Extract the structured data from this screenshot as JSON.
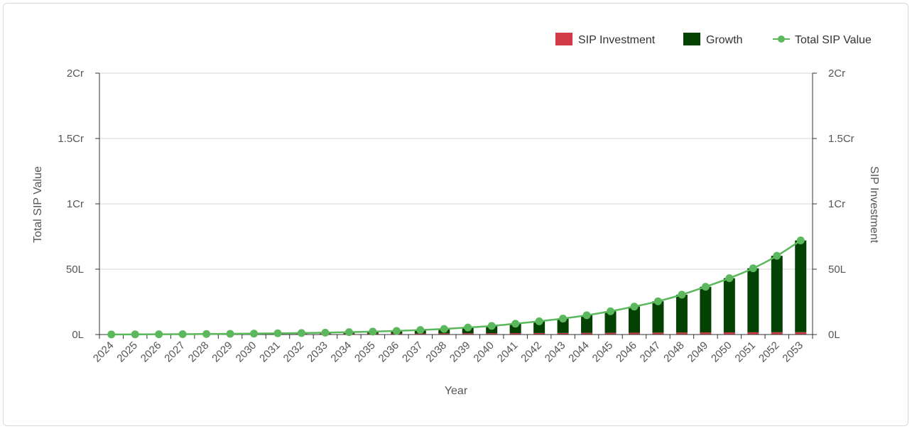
{
  "chart_data": {
    "type": "bar",
    "stacked": true,
    "categories": [
      "2024",
      "2025",
      "2026",
      "2027",
      "2028",
      "2029",
      "2030",
      "2031",
      "2032",
      "2033",
      "2034",
      "2035",
      "2036",
      "2037",
      "2038",
      "2039",
      "2040",
      "2041",
      "2042",
      "2043",
      "2044",
      "2045",
      "2046",
      "2047",
      "2048",
      "2049",
      "2050",
      "2051",
      "2052",
      "2053"
    ],
    "series": [
      {
        "name": "SIP Investment",
        "kind": "bar",
        "color": "#d13b47",
        "values": [
          0.06,
          0.12,
          0.18,
          0.24,
          0.3,
          0.36,
          0.42,
          0.48,
          0.54,
          0.6,
          0.66,
          0.72,
          0.78,
          0.84,
          0.9,
          0.96,
          1.02,
          1.08,
          1.14,
          1.2,
          1.26,
          1.32,
          1.38,
          1.44,
          1.5,
          1.56,
          1.62,
          1.68,
          1.74,
          1.8
        ]
      },
      {
        "name": "Growth",
        "kind": "bar",
        "color": "#034203",
        "values": [
          0.0,
          0.0,
          0.02,
          0.05,
          0.1,
          0.18,
          0.3,
          0.45,
          0.62,
          0.85,
          1.15,
          1.5,
          2.0,
          2.6,
          3.4,
          4.4,
          5.6,
          7.2,
          9.0,
          11.0,
          13.5,
          16.5,
          20.0,
          24.0,
          29.0,
          35.0,
          41.5,
          49.0,
          58.5,
          70.2
        ]
      },
      {
        "name": "Total SIP Value",
        "kind": "line",
        "color": "#5cb85c",
        "values": [
          0.06,
          0.12,
          0.2,
          0.29,
          0.4,
          0.54,
          0.72,
          0.93,
          1.16,
          1.45,
          1.81,
          2.22,
          2.78,
          3.44,
          4.3,
          5.36,
          6.62,
          8.28,
          10.14,
          12.2,
          14.76,
          17.82,
          21.38,
          25.44,
          30.5,
          36.56,
          43.12,
          50.68,
          60.24,
          72.0
        ]
      }
    ],
    "unit": "Lakh",
    "xlabel": "Year",
    "ylabel_left": "Total SIP Value",
    "ylabel_right": "SIP Investment",
    "yticks": [
      "0L",
      "50L",
      "1Cr",
      "1.5Cr",
      "2Cr"
    ],
    "ylim": [
      0,
      200
    ],
    "grid": true,
    "legend_position": "top-right"
  }
}
